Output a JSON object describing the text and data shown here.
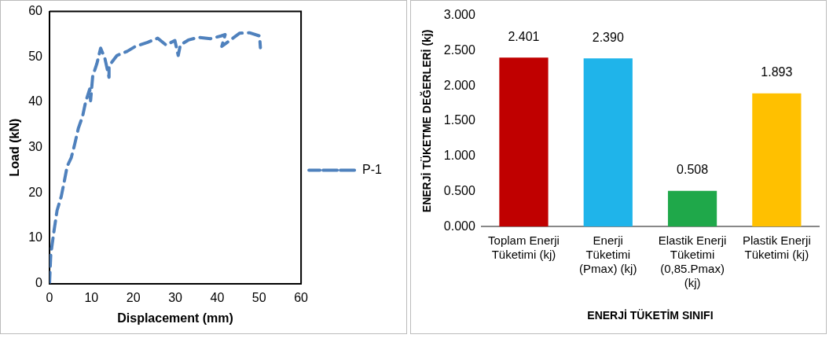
{
  "chart_data": [
    {
      "type": "line",
      "xlabel": "Displacement (mm)",
      "ylabel": "Load (kN)",
      "xlim": [
        0,
        60
      ],
      "xticks": [
        0,
        10,
        20,
        30,
        40,
        50,
        60
      ],
      "ylim": [
        0,
        60
      ],
      "yticks": [
        0,
        10,
        20,
        30,
        40,
        50,
        60
      ],
      "grid": false,
      "legend": "right",
      "line_style": "dashed",
      "marker": "none",
      "series": [
        {
          "name": "P-1",
          "color": "#4f81bd",
          "x": [
            0,
            0.3,
            1.06,
            1.8,
            2.8,
            3.5,
            4.2,
            5.2,
            5.9,
            6.9,
            7.9,
            8.6,
            9.6,
            9.8,
            10.3,
            11.3,
            12.2,
            13.2,
            14.2,
            14.2,
            16.1,
            18.5,
            20.5,
            23.4,
            25.8,
            27.8,
            29.9,
            30.7,
            31.2,
            33.1,
            35.5,
            38.4,
            40.9,
            41.9,
            41.1,
            45.3,
            47.7,
            50.1,
            50.3
          ],
          "values": [
            0,
            6.4,
            11.5,
            16.1,
            19.2,
            22.4,
            25.8,
            27.8,
            30.3,
            34.3,
            36.9,
            40,
            42.9,
            40.3,
            45.7,
            48.5,
            51.9,
            49.7,
            45.5,
            48,
            50.3,
            51.2,
            52.3,
            53.2,
            54.1,
            52.6,
            53.6,
            50.3,
            52.6,
            53.7,
            54.3,
            54,
            54.6,
            54.9,
            52.3,
            55.2,
            55.3,
            54.6,
            52
          ]
        }
      ]
    },
    {
      "type": "bar",
      "xlabel": "ENERJİ TÜKETİM SINIFI",
      "ylabel": "ENERJİ TÜKETME DEĞERLERİ (kj)",
      "categories": [
        "Toplam Enerji Tüketimi (kj)",
        "Enerji Tüketimi (Pmax) (kj)",
        "Elastik Enerji Tüketimi (0,85.Pmax) (kj)",
        "Plastik Enerji Tüketimi (kj)"
      ],
      "values": [
        2.401,
        2.39,
        0.508,
        1.893
      ],
      "colors": [
        "#c00000",
        "#1fb4ea",
        "#1fa84a",
        "#ffc000"
      ],
      "ylim": [
        0,
        3
      ],
      "yticks": [
        {
          "value": 0,
          "label": "0.000"
        },
        {
          "value": 0.5,
          "label": "0.500"
        },
        {
          "value": 1,
          "label": "1.000"
        },
        {
          "value": 1.5,
          "label": "1.500"
        },
        {
          "value": 2,
          "label": "2.000"
        },
        {
          "value": 2.5,
          "label": "2.500"
        },
        {
          "value": 3,
          "label": "3.000"
        }
      ],
      "value_labels": [
        "2.401",
        "2.390",
        "0.508",
        "1.893"
      ],
      "grid": false,
      "legend": false
    }
  ]
}
